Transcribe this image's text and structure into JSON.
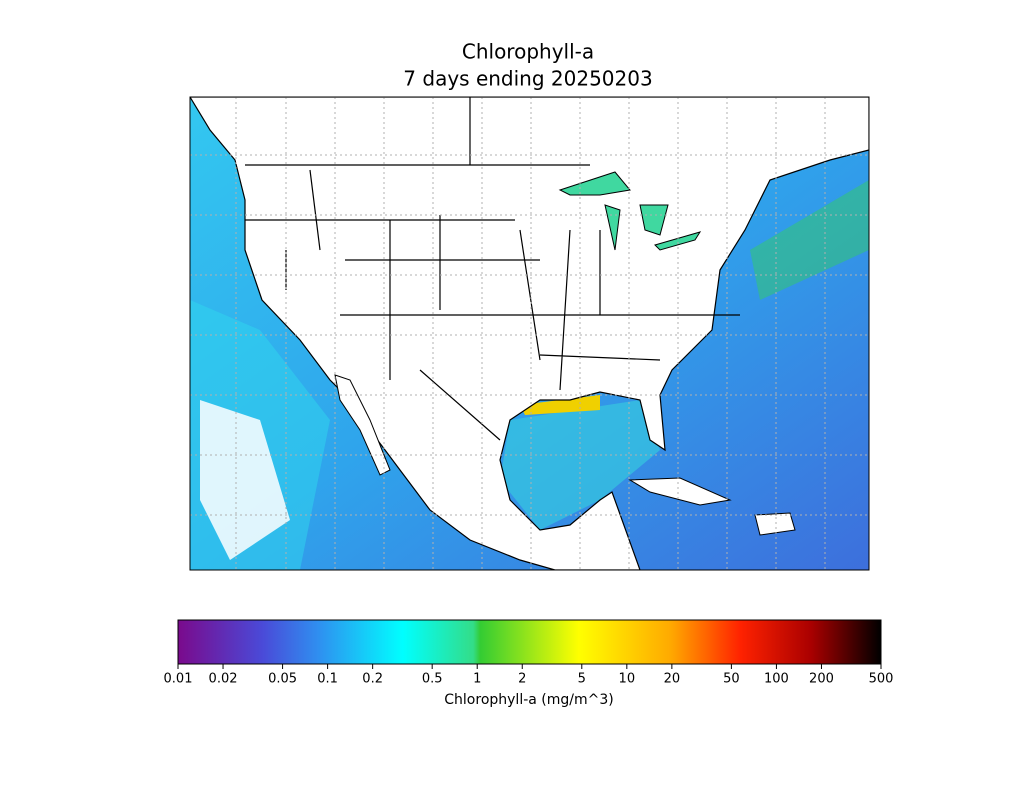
{
  "title": "Chlorophyll-a",
  "subtitle": "7 days ending 20250203",
  "colorbar": {
    "label": "Chlorophyll-a (mg/m^3)",
    "scale": "log",
    "lim": [
      0.01,
      500
    ],
    "ticks": [
      0.01,
      0.02,
      0.05,
      0.1,
      0.2,
      0.5,
      1,
      2,
      5,
      10,
      20,
      50,
      100,
      200,
      500
    ]
  }
}
